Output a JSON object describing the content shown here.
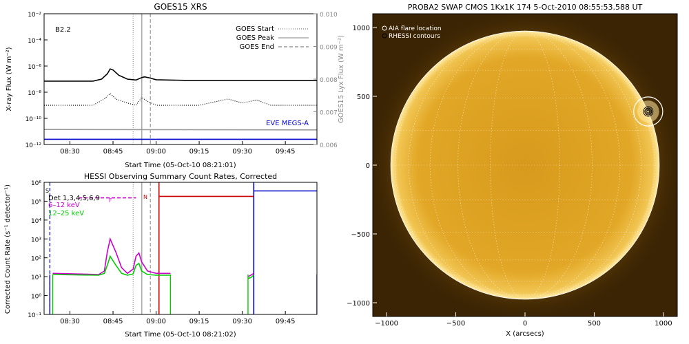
{
  "chart_data": [
    {
      "type": "line",
      "title": "GOES15 XRS",
      "xlabel": "Start Time (05-Oct-10 08:21:01)",
      "ylabel": "X-ray Flux (W m⁻²)",
      "ylabel_right": "GOES15 Lyx Flux (W m⁻²)",
      "scale_y": "log",
      "xlim": [
        "08:21",
        "09:56"
      ],
      "ylim": [
        1e-12,
        0.01
      ],
      "ylim_right": [
        0.006,
        0.01
      ],
      "x_ticks": [
        "08:30",
        "08:45",
        "09:00",
        "09:15",
        "09:30",
        "09:45"
      ],
      "y_ticks": [
        "10⁻¹²",
        "10⁻¹⁰",
        "10⁻⁸",
        "10⁻⁶",
        "10⁻⁴",
        "10⁻²"
      ],
      "y_ticks_right": [
        "0.006",
        "0.007",
        "0.008",
        "0.009",
        "0.010"
      ],
      "class_label": "B2.2",
      "legend_title": "EVE MEGS-A",
      "markers": [
        {
          "name": "GOES Start",
          "time": "08:52",
          "style": "dotted",
          "color": "#999999"
        },
        {
          "name": "GOES Peak",
          "time": "08:55",
          "style": "solid",
          "color": "#aaaaaa"
        },
        {
          "name": "GOES End",
          "time": "08:58",
          "style": "dashed",
          "color": "#999999"
        }
      ],
      "series": [
        {
          "color": "#000000",
          "x": [
            "08:21",
            "08:38",
            "08:41",
            "08:43",
            "08:44",
            "08:45",
            "08:47",
            "08:50",
            "08:53",
            "08:55",
            "08:56",
            "08:58",
            "09:00",
            "09:10",
            "09:30",
            "09:56"
          ],
          "y": [
            7e-08,
            7e-08,
            1e-07,
            2.5e-07,
            6e-07,
            5e-07,
            2e-07,
            1e-07,
            8.5e-08,
            1.3e-07,
            1.5e-07,
            1.2e-07,
            9e-08,
            8e-08,
            8e-08,
            8e-08
          ]
        },
        {
          "color": "#000000",
          "style": "dotted",
          "x": [
            "08:21",
            "08:38",
            "08:42",
            "08:44",
            "08:46",
            "08:50",
            "08:53",
            "08:55",
            "08:57",
            "09:00",
            "09:15",
            "09:25",
            "09:30",
            "09:35",
            "09:40",
            "09:56"
          ],
          "y": [
            1e-09,
            1e-09,
            3e-09,
            8e-09,
            3e-09,
            1.5e-09,
            1e-09,
            4e-09,
            2e-09,
            1e-09,
            1e-09,
            3e-09,
            1.5e-09,
            2.5e-09,
            1e-09,
            1e-09
          ]
        },
        {
          "color": "#999999",
          "x": [
            "08:21",
            "09:56"
          ],
          "y": [
            1.4e-11,
            1.3e-11
          ]
        },
        {
          "color": "#0000cc",
          "x": [
            "08:21",
            "09:56"
          ],
          "y": [
            2.5e-12,
            2.5e-12
          ]
        }
      ]
    },
    {
      "type": "line",
      "title": "HESSI Observing Summary Count Rates, Corrected",
      "xlabel": "Start Time (05-Oct-10 08:21:02)",
      "ylabel": "Corrected Count Rate (s⁻¹ detector⁻¹)",
      "scale_y": "log",
      "xlim": [
        "08:21",
        "09:56"
      ],
      "ylim": [
        0.1,
        1000000.0
      ],
      "x_ticks": [
        "08:30",
        "08:45",
        "09:00",
        "09:15",
        "09:30",
        "09:45"
      ],
      "y_ticks": [
        "10⁻¹",
        "10⁰",
        "10¹",
        "10²",
        "10³",
        "10⁴",
        "10⁵",
        "10⁶"
      ],
      "legend": [
        "Det 1,3,4,5,6,9",
        "6–12 keV",
        "12–25 keV"
      ],
      "annotations": [
        "S",
        "F",
        "N"
      ],
      "markers": [
        {
          "time": "08:52",
          "style": "dotted",
          "color": "#999999"
        },
        {
          "time": "08:55",
          "style": "solid",
          "color": "#aaaaaa"
        },
        {
          "time": "08:58",
          "style": "dashed",
          "color": "#999999"
        },
        {
          "time": "09:01",
          "style": "solid",
          "color": "#cc0000"
        },
        {
          "time": "09:34",
          "style": "dashed",
          "color": "#cc0000"
        },
        {
          "time": "08:23",
          "style": "dashed",
          "color": "#0000cc"
        },
        {
          "time": "09:34",
          "style": "solid",
          "color": "#0000cc"
        }
      ],
      "series": [
        {
          "name": "6–12 keV",
          "color": "#cc00cc",
          "x": [
            "08:24",
            "08:40",
            "08:42",
            "08:43",
            "08:44",
            "08:46",
            "08:48",
            "08:50",
            "08:52",
            "08:53",
            "08:54",
            "08:55",
            "08:57",
            "09:00",
            "09:05"
          ],
          "y": [
            15,
            13,
            20,
            200,
            1000,
            200,
            30,
            15,
            25,
            120,
            180,
            60,
            20,
            15,
            15
          ]
        },
        {
          "name": "12–25 keV",
          "color": "#00cc00",
          "x": [
            "08:24",
            "08:40",
            "08:42",
            "08:43",
            "08:44",
            "08:46",
            "08:48",
            "08:50",
            "08:52",
            "08:53",
            "08:54",
            "08:55",
            "08:57",
            "09:00",
            "09:05"
          ],
          "y": [
            13,
            12,
            15,
            40,
            120,
            40,
            15,
            12,
            14,
            40,
            50,
            20,
            13,
            12,
            12
          ]
        },
        {
          "name": "6–12 keV",
          "color": "#cc00cc",
          "style": "dashed",
          "x": [
            "08:33",
            "08:53"
          ],
          "y": [
            150000,
            150000
          ]
        },
        {
          "color": "#cc0000",
          "x": [
            "09:01",
            "09:34"
          ],
          "y": [
            180000,
            180000
          ]
        },
        {
          "color": "#0000cc",
          "x": [
            "09:34",
            "09:56"
          ],
          "y": [
            350000,
            350000
          ]
        },
        {
          "name": "6–12 keV",
          "color": "#cc00cc",
          "x": [
            "09:32",
            "09:33",
            "09:34"
          ],
          "y": [
            10,
            12,
            15
          ]
        },
        {
          "name": "12–25 keV",
          "color": "#00cc00",
          "x": [
            "09:32",
            "09:33",
            "09:34"
          ],
          "y": [
            8,
            9,
            12
          ]
        }
      ]
    },
    {
      "type": "scatter",
      "title": "PROBA2 SWAP CMOS 1Kx1K 174  5-Oct-2010 08:55:53.588 UT",
      "xlabel": "X (arcsecs)",
      "ylabel": "",
      "xlim": [
        -1100,
        1100
      ],
      "ylim": [
        -1100,
        1100
      ],
      "x_ticks": [
        "−1000",
        "−500",
        "0",
        "500",
        "1000"
      ],
      "y_ticks": [
        "−1000",
        "−500",
        "0",
        "500",
        "1000"
      ],
      "legend": [
        "AIA flare location",
        "RHESSI contours"
      ],
      "solar_radius_arcsec": 970,
      "flare": {
        "x": 890,
        "y": 390,
        "circle_radius_arcsec": 105
      },
      "background_color": "#3a2403",
      "disk_color": "#e0a420"
    }
  ]
}
